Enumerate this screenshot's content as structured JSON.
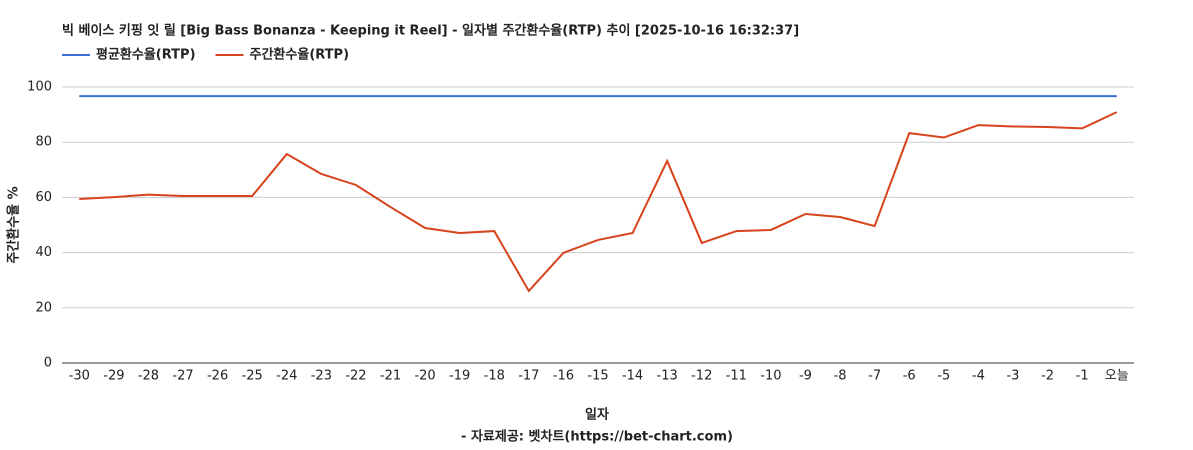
{
  "chart_data": {
    "type": "line",
    "title": "빅 베이스 키핑 잇 릴 [Big Bass Bonanza - Keeping it Reel] - 일자별 주간환수율(RTP) 추이 [2025-10-16 16:32:37]",
    "x_label": "일자",
    "y_label": "주간환수율 %",
    "source": "- 자료제공: 벳차트(https://bet-chart.com)",
    "categories": [
      "-30",
      "-29",
      "-28",
      "-27",
      "-26",
      "-25",
      "-24",
      "-23",
      "-22",
      "-21",
      "-20",
      "-19",
      "-18",
      "-17",
      "-16",
      "-15",
      "-14",
      "-13",
      "-12",
      "-11",
      "-10",
      "-9",
      "-8",
      "-7",
      "-6",
      "-5",
      "-4",
      "-3",
      "-2",
      "-1",
      "오늘"
    ],
    "series": [
      {
        "name": "평균환수율(RTP)",
        "color": "#3b6fd6",
        "values": [
          96.7,
          96.7,
          96.7,
          96.7,
          96.7,
          96.7,
          96.7,
          96.7,
          96.7,
          96.7,
          96.7,
          96.7,
          96.7,
          96.7,
          96.7,
          96.7,
          96.7,
          96.7,
          96.7,
          96.7,
          96.7,
          96.7,
          96.7,
          96.7,
          96.7,
          96.7,
          96.7,
          96.7,
          96.7,
          96.7,
          96.7
        ]
      },
      {
        "name": "주간환수율(RTP)",
        "color": "#d6431c",
        "values": [
          59.4,
          60.1,
          61.0,
          60.5,
          60.5,
          60.5,
          75.7,
          68.5,
          64.5,
          56.5,
          48.9,
          47.1,
          47.8,
          26.1,
          39.9,
          44.6,
          47.1,
          73.2,
          43.5,
          47.8,
          48.2,
          54.0,
          52.9,
          49.6,
          83.3,
          81.7,
          86.2,
          85.7,
          85.5,
          85.0,
          90.9
        ]
      }
    ],
    "ylim": [
      0,
      100
    ],
    "yticks": [
      0,
      20,
      40,
      60,
      80,
      100
    ],
    "grid": true,
    "legend": "top-left"
  }
}
